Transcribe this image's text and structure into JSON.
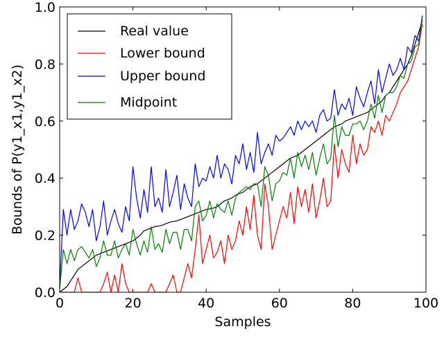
{
  "chart_data": {
    "type": "line",
    "xlabel": "Samples",
    "ylabel": "Bounds of P(y1_x1,y1_x2)",
    "xlim": [
      0,
      100
    ],
    "ylim": [
      0.0,
      1.0
    ],
    "xticks": [
      0,
      20,
      40,
      60,
      80,
      100
    ],
    "yticks": [
      0.0,
      0.2,
      0.4,
      0.6,
      0.8,
      1.0
    ],
    "xtick_labels": [
      "0",
      "20",
      "40",
      "60",
      "80",
      "100"
    ],
    "ytick_labels": [
      "0.0",
      "0.2",
      "0.4",
      "0.6",
      "0.8",
      "1.0"
    ],
    "grid": false,
    "legend_position": "top-left",
    "x": [
      0,
      1,
      2,
      3,
      4,
      5,
      6,
      7,
      8,
      9,
      10,
      11,
      12,
      13,
      14,
      15,
      16,
      17,
      18,
      19,
      20,
      21,
      22,
      23,
      24,
      25,
      26,
      27,
      28,
      29,
      30,
      31,
      32,
      33,
      34,
      35,
      36,
      37,
      38,
      39,
      40,
      41,
      42,
      43,
      44,
      45,
      46,
      47,
      48,
      49,
      50,
      51,
      52,
      53,
      54,
      55,
      56,
      57,
      58,
      59,
      60,
      61,
      62,
      63,
      64,
      65,
      66,
      67,
      68,
      69,
      70,
      71,
      72,
      73,
      74,
      75,
      76,
      77,
      78,
      79,
      80,
      81,
      82,
      83,
      84,
      85,
      86,
      87,
      88,
      89,
      90,
      91,
      92,
      93,
      94,
      95,
      96,
      97,
      98,
      99
    ],
    "series": [
      {
        "name": "Real value",
        "color": "#000000",
        "values": [
          0.0,
          0.01,
          0.02,
          0.04,
          0.06,
          0.08,
          0.09,
          0.1,
          0.11,
          0.12,
          0.13,
          0.135,
          0.14,
          0.145,
          0.15,
          0.155,
          0.16,
          0.165,
          0.17,
          0.175,
          0.18,
          0.19,
          0.2,
          0.215,
          0.22,
          0.225,
          0.23,
          0.232,
          0.235,
          0.24,
          0.245,
          0.248,
          0.25,
          0.255,
          0.26,
          0.265,
          0.27,
          0.275,
          0.28,
          0.285,
          0.29,
          0.292,
          0.295,
          0.3,
          0.31,
          0.32,
          0.325,
          0.33,
          0.34,
          0.345,
          0.35,
          0.36,
          0.37,
          0.375,
          0.38,
          0.39,
          0.4,
          0.41,
          0.42,
          0.43,
          0.44,
          0.45,
          0.46,
          0.47,
          0.475,
          0.48,
          0.49,
          0.5,
          0.51,
          0.52,
          0.53,
          0.54,
          0.55,
          0.56,
          0.57,
          0.58,
          0.585,
          0.59,
          0.6,
          0.605,
          0.61,
          0.615,
          0.62,
          0.625,
          0.63,
          0.64,
          0.65,
          0.66,
          0.67,
          0.69,
          0.7,
          0.72,
          0.74,
          0.76,
          0.78,
          0.8,
          0.83,
          0.87,
          0.91,
          0.95
        ]
      },
      {
        "name": "Lower bound",
        "color": "#ff0000",
        "values": [
          0.0,
          0.0,
          0.0,
          0.0,
          0.0,
          0.05,
          0.0,
          0.0,
          0.0,
          0.0,
          0.0,
          0.0,
          0.03,
          0.07,
          0.0,
          0.06,
          0.0,
          0.1,
          0.03,
          0.0,
          0.0,
          0.0,
          0.0,
          0.0,
          0.0,
          0.03,
          0.0,
          0.0,
          0.0,
          0.0,
          0.03,
          0.06,
          0.0,
          0.0,
          0.05,
          0.1,
          0.05,
          0.15,
          0.27,
          0.1,
          0.15,
          0.2,
          0.12,
          0.14,
          0.18,
          0.1,
          0.2,
          0.15,
          0.18,
          0.25,
          0.2,
          0.3,
          0.22,
          0.34,
          0.2,
          0.15,
          0.38,
          0.3,
          0.15,
          0.2,
          0.25,
          0.3,
          0.26,
          0.35,
          0.24,
          0.37,
          0.3,
          0.36,
          0.28,
          0.38,
          0.26,
          0.32,
          0.4,
          0.3,
          0.32,
          0.52,
          0.4,
          0.5,
          0.45,
          0.42,
          0.55,
          0.45,
          0.52,
          0.48,
          0.5,
          0.58,
          0.56,
          0.6,
          0.55,
          0.62,
          0.6,
          0.63,
          0.66,
          0.7,
          0.72,
          0.74,
          0.78,
          0.82,
          0.86,
          0.94
        ]
      },
      {
        "name": "Upper bound",
        "color": "#0000ff",
        "values": [
          0.02,
          0.29,
          0.2,
          0.29,
          0.22,
          0.25,
          0.31,
          0.28,
          0.23,
          0.29,
          0.18,
          0.23,
          0.32,
          0.2,
          0.25,
          0.29,
          0.24,
          0.21,
          0.3,
          0.25,
          0.44,
          0.33,
          0.26,
          0.36,
          0.28,
          0.44,
          0.3,
          0.33,
          0.28,
          0.43,
          0.3,
          0.35,
          0.41,
          0.29,
          0.38,
          0.33,
          0.3,
          0.45,
          0.37,
          0.4,
          0.39,
          0.44,
          0.4,
          0.48,
          0.4,
          0.45,
          0.43,
          0.38,
          0.48,
          0.45,
          0.52,
          0.43,
          0.49,
          0.42,
          0.56,
          0.45,
          0.49,
          0.52,
          0.48,
          0.55,
          0.53,
          0.54,
          0.56,
          0.58,
          0.55,
          0.6,
          0.57,
          0.6,
          0.58,
          0.6,
          0.56,
          0.62,
          0.64,
          0.6,
          0.61,
          0.71,
          0.62,
          0.66,
          0.64,
          0.68,
          0.62,
          0.72,
          0.68,
          0.65,
          0.7,
          0.74,
          0.66,
          0.78,
          0.7,
          0.75,
          0.8,
          0.76,
          0.78,
          0.82,
          0.78,
          0.86,
          0.84,
          0.9,
          0.88,
          0.97
        ]
      },
      {
        "name": "Midpoint",
        "color": "#008000",
        "values": [
          0.01,
          0.15,
          0.1,
          0.15,
          0.11,
          0.15,
          0.16,
          0.14,
          0.12,
          0.15,
          0.09,
          0.12,
          0.18,
          0.13,
          0.13,
          0.18,
          0.12,
          0.15,
          0.17,
          0.13,
          0.22,
          0.17,
          0.13,
          0.18,
          0.14,
          0.23,
          0.15,
          0.17,
          0.14,
          0.22,
          0.17,
          0.21,
          0.21,
          0.15,
          0.22,
          0.22,
          0.18,
          0.3,
          0.32,
          0.25,
          0.27,
          0.32,
          0.26,
          0.31,
          0.29,
          0.28,
          0.32,
          0.27,
          0.33,
          0.35,
          0.36,
          0.37,
          0.36,
          0.38,
          0.38,
          0.3,
          0.44,
          0.41,
          0.32,
          0.38,
          0.39,
          0.42,
          0.41,
          0.47,
          0.4,
          0.49,
          0.44,
          0.48,
          0.43,
          0.49,
          0.41,
          0.47,
          0.52,
          0.45,
          0.47,
          0.62,
          0.51,
          0.58,
          0.55,
          0.55,
          0.59,
          0.59,
          0.6,
          0.57,
          0.6,
          0.66,
          0.61,
          0.69,
          0.63,
          0.69,
          0.7,
          0.7,
          0.72,
          0.76,
          0.75,
          0.8,
          0.81,
          0.86,
          0.87,
          0.96
        ]
      }
    ],
    "legend": [
      {
        "label": "Real value",
        "color": "#000000"
      },
      {
        "label": "Lower bound",
        "color": "#ff0000"
      },
      {
        "label": "Upper bound",
        "color": "#0000ff"
      },
      {
        "label": "Midpoint",
        "color": "#008000"
      }
    ]
  }
}
